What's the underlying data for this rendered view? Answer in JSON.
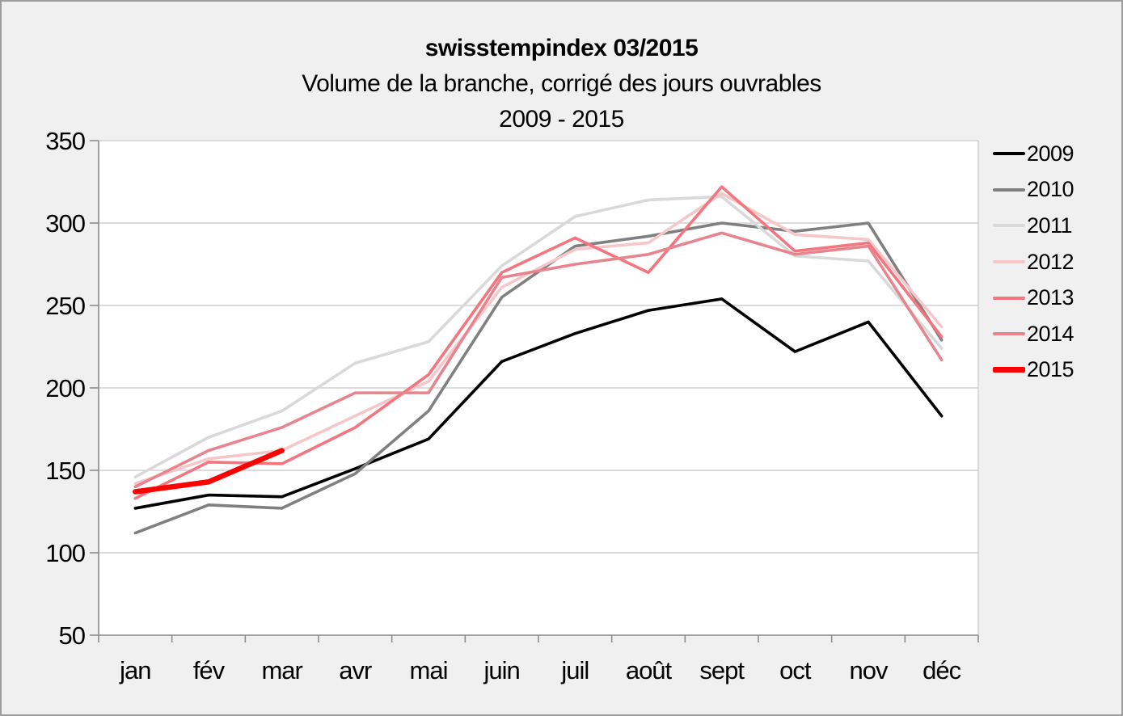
{
  "title": "swisstempindex 03/2015",
  "subtitle": "Volume de la branche, corrigé des jours ouvrables",
  "period": "2009 - 2015",
  "colors": {
    "background": "#f0f0f0",
    "plot_background": "#ffffff",
    "grid": "#c8c8c8",
    "axis": "#8c8c8c",
    "frame_border": "#9d9d9d",
    "text": "#000000"
  },
  "chart_data": {
    "type": "line",
    "title": "swisstempindex 03/2015",
    "subtitle": "Volume de la branche, corrigé des jours ouvrables",
    "period_label": "2009 - 2015",
    "xlabel": "",
    "ylabel": "",
    "ylim": [
      50,
      350
    ],
    "yticks": [
      350,
      300,
      250,
      200,
      150,
      100,
      50
    ],
    "grid": true,
    "legend_position": "right",
    "categories": [
      "jan",
      "fév",
      "mar",
      "avr",
      "mai",
      "juin",
      "juil",
      "août",
      "sept",
      "oct",
      "nov",
      "déc"
    ],
    "series": [
      {
        "name": "2009",
        "color": "#000000",
        "line_width": 3.6,
        "values": [
          127,
          135,
          134,
          151,
          169,
          216,
          233,
          247,
          254,
          222,
          240,
          183
        ]
      },
      {
        "name": "2010",
        "color": "#808080",
        "line_width": 3.6,
        "values": [
          112,
          129,
          127,
          148,
          186,
          255,
          286,
          292,
          300,
          295,
          300,
          229
        ]
      },
      {
        "name": "2011",
        "color": "#d9d9d9",
        "line_width": 3.6,
        "values": [
          146,
          170,
          186,
          215,
          228,
          274,
          304,
          314,
          316,
          280,
          277,
          224
        ]
      },
      {
        "name": "2012",
        "color": "#f6c7c9",
        "line_width": 3.6,
        "values": [
          142,
          157,
          162,
          183,
          204,
          261,
          284,
          288,
          318,
          293,
          290,
          237
        ]
      },
      {
        "name": "2013",
        "color": "#f4757d",
        "line_width": 3.6,
        "values": [
          133,
          155,
          154,
          176,
          208,
          270,
          291,
          270,
          322,
          283,
          288,
          231
        ]
      },
      {
        "name": "2014",
        "color": "#e8848e",
        "line_width": 3.6,
        "values": [
          140,
          162,
          176,
          197,
          197,
          267,
          275,
          281,
          294,
          281,
          286,
          217
        ]
      },
      {
        "name": "2015",
        "color": "#fe0000",
        "line_width": 6.5,
        "values": [
          137,
          143,
          162
        ]
      }
    ]
  }
}
